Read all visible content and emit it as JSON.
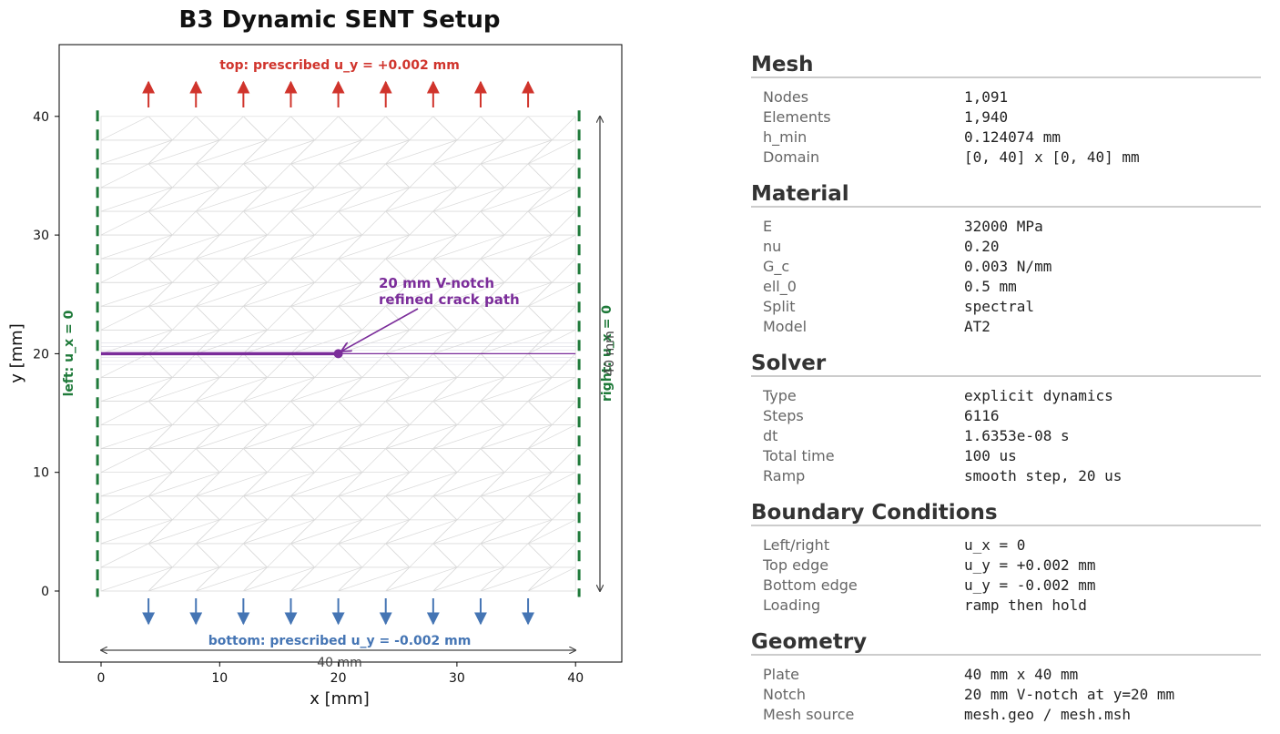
{
  "chart_data": {
    "type": "diagram",
    "title": "B3 Dynamic SENT Setup",
    "xlabel": "x [mm]",
    "ylabel": "y [mm]",
    "xlim": [
      -3.5,
      43.5
    ],
    "ylim": [
      -6,
      46
    ],
    "x_ticks": [
      "0",
      "10",
      "20",
      "30",
      "40"
    ],
    "y_ticks": [
      "0",
      "10",
      "20",
      "30",
      "40"
    ],
    "domain": {
      "x": [
        0,
        40
      ],
      "y": [
        0,
        40
      ]
    },
    "crack": {
      "y": 20,
      "x_start": 0,
      "x_tip": 20,
      "refined_path_x_end": 40
    },
    "top_arrows_x": [
      4,
      8,
      12,
      16,
      20,
      24,
      28,
      32,
      36
    ],
    "bottom_arrows_x": [
      4,
      8,
      12,
      16,
      20,
      24,
      28,
      32,
      36
    ],
    "labels": {
      "top_bc": "top: prescribed u_y = +0.002 mm",
      "bottom_bc": "bottom: prescribed u_y = -0.002 mm",
      "left_bc": "left: u_x = 0",
      "right_bc": "right: u_x = 0",
      "notch_line1": "20 mm V-notch",
      "notch_line2": "refined crack path",
      "width_dim": "40 mm",
      "height_dim": "40 mm"
    },
    "colors": {
      "top_arrows": "#d0342c",
      "bottom_arrows": "#4575b4",
      "side_bc": "#1f7a3a",
      "crack": "#7b2d9a",
      "mesh": "#d9d9d9"
    },
    "grid": false
  },
  "info": {
    "sections": [
      {
        "title": "Mesh",
        "rows": [
          {
            "key": "Nodes",
            "value": "1,091"
          },
          {
            "key": "Elements",
            "value": "1,940"
          },
          {
            "key": "h_min",
            "value": "0.124074 mm"
          },
          {
            "key": "Domain",
            "value": "[0, 40] x [0, 40] mm"
          }
        ]
      },
      {
        "title": "Material",
        "rows": [
          {
            "key": "E",
            "value": "32000 MPa"
          },
          {
            "key": "nu",
            "value": "0.20"
          },
          {
            "key": "G_c",
            "value": "0.003 N/mm"
          },
          {
            "key": "ell_0",
            "value": "0.5 mm"
          },
          {
            "key": "Split",
            "value": "spectral"
          },
          {
            "key": "Model",
            "value": "AT2"
          }
        ]
      },
      {
        "title": "Solver",
        "rows": [
          {
            "key": "Type",
            "value": "explicit dynamics"
          },
          {
            "key": "Steps",
            "value": "6116"
          },
          {
            "key": "dt",
            "value": "1.6353e-08 s"
          },
          {
            "key": "Total time",
            "value": "100 us"
          },
          {
            "key": "Ramp",
            "value": "smooth step, 20 us"
          }
        ]
      },
      {
        "title": "Boundary Conditions",
        "rows": [
          {
            "key": "Left/right",
            "value": "u_x = 0"
          },
          {
            "key": "Top edge",
            "value": "u_y = +0.002 mm"
          },
          {
            "key": "Bottom edge",
            "value": "u_y = -0.002 mm"
          },
          {
            "key": "Loading",
            "value": "ramp then hold"
          }
        ]
      },
      {
        "title": "Geometry",
        "rows": [
          {
            "key": "Plate",
            "value": "40 mm x 40 mm"
          },
          {
            "key": "Notch",
            "value": "20 mm V-notch at y=20 mm"
          },
          {
            "key": "Mesh source",
            "value": "mesh.geo / mesh.msh"
          }
        ]
      }
    ]
  }
}
